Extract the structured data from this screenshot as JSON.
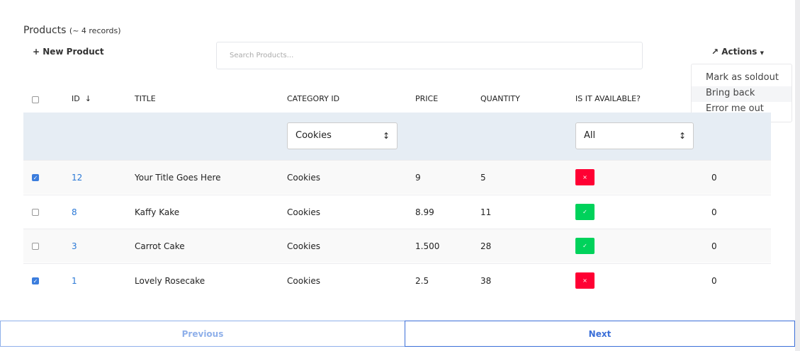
{
  "header": {
    "title": "Products",
    "record_count": "(~ 4 records)",
    "new_label": "+ New Product",
    "search_placeholder": "Search Products...",
    "actions_label": "Actions"
  },
  "actions_menu": [
    "Mark as soldout",
    "Bring back",
    "Error me out"
  ],
  "columns": [
    "ID",
    "TITLE",
    "CATEGORY ID",
    "PRICE",
    "QUANTITY",
    "IS IT AVAILABLE?"
  ],
  "filters": {
    "category": "Cookies",
    "available": "All"
  },
  "rows": [
    {
      "checked": true,
      "id": "12",
      "title": "Your Title Goes Here",
      "category": "Cookies",
      "price": "9",
      "quantity": "5",
      "available": false,
      "extra": "0"
    },
    {
      "checked": false,
      "id": "8",
      "title": "Kaffy Kake",
      "category": "Cookies",
      "price": "8.99",
      "quantity": "11",
      "available": true,
      "extra": "0"
    },
    {
      "checked": false,
      "id": "3",
      "title": "Carrot Cake",
      "category": "Cookies",
      "price": "1.500",
      "quantity": "28",
      "available": true,
      "extra": "0"
    },
    {
      "checked": true,
      "id": "1",
      "title": "Lovely Rosecake",
      "category": "Cookies",
      "price": "2.5",
      "quantity": "38",
      "available": false,
      "extra": "0"
    }
  ],
  "pagination": {
    "previous": "Previous",
    "next": "Next"
  },
  "colors": {
    "accent": "#3b7ddd",
    "available": "#00d25b",
    "unavailable": "#ff0033",
    "filter_bg": "#e6edf4"
  }
}
